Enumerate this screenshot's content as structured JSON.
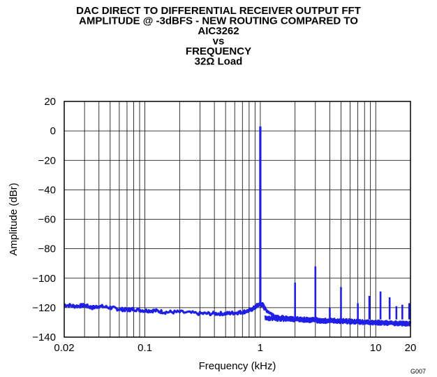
{
  "chart_data": {
    "type": "line",
    "title_lines": [
      "DAC DIRECT TO DIFFERENTIAL RECEIVER OUTPUT FFT",
      "AMPLITUDE @ -3dBFS - NEW ROUTING COMPARED TO",
      "AIC3262",
      "vs",
      "FREQUENCY",
      "32Ω Load"
    ],
    "xlabel": "Frequency (kHz)",
    "ylabel": "Amplitude (dBr)",
    "x_scale": "log",
    "xlim": [
      0.02,
      20
    ],
    "ylim": [
      -140,
      20
    ],
    "x_tick_values": [
      0.02,
      0.1,
      1,
      10,
      20
    ],
    "x_tick_labels": [
      "0.02",
      "0.1",
      "1",
      "10",
      "20"
    ],
    "y_tick_values": [
      20,
      0,
      -20,
      -40,
      -60,
      -80,
      -100,
      -120,
      -140
    ],
    "y_tick_labels": [
      "20",
      "0",
      "−20",
      "−40",
      "−60",
      "−80",
      "−100",
      "−120",
      "−140"
    ],
    "grid": true,
    "figure_code": "G007",
    "line_color": "#1f1fe6",
    "series": [
      {
        "noise_floor": [
          [
            0.02,
            -118
          ],
          [
            0.025,
            -119
          ],
          [
            0.03,
            -118.5
          ],
          [
            0.035,
            -120
          ],
          [
            0.04,
            -119
          ],
          [
            0.05,
            -120
          ],
          [
            0.06,
            -121
          ],
          [
            0.07,
            -121.5
          ],
          [
            0.08,
            -121
          ],
          [
            0.1,
            -122
          ],
          [
            0.12,
            -122
          ],
          [
            0.15,
            -123
          ],
          [
            0.2,
            -123
          ],
          [
            0.3,
            -124
          ],
          [
            0.4,
            -124
          ],
          [
            0.5,
            -124
          ],
          [
            0.6,
            -123.5
          ],
          [
            0.7,
            -123
          ],
          [
            0.8,
            -122
          ],
          [
            0.9,
            -120
          ],
          [
            0.95,
            -118
          ],
          [
            1.05,
            -118
          ],
          [
            1.1,
            -121
          ],
          [
            1.3,
            -125
          ],
          [
            1.6,
            -127
          ],
          [
            2,
            -128
          ],
          [
            3,
            -129
          ],
          [
            4,
            -129.5
          ],
          [
            6,
            -130
          ],
          [
            10,
            -130
          ],
          [
            15,
            -131
          ],
          [
            20,
            -131
          ]
        ],
        "peaks": [
          [
            1,
            3
          ],
          [
            2,
            -103
          ],
          [
            3,
            -92
          ],
          [
            4,
            -120
          ],
          [
            5,
            -106
          ],
          [
            7,
            -117
          ],
          [
            8.8,
            -112
          ],
          [
            11,
            -109
          ],
          [
            13.2,
            -113
          ],
          [
            15.1,
            -119
          ],
          [
            17,
            -118
          ],
          [
            19.5,
            -117
          ]
        ]
      }
    ]
  }
}
